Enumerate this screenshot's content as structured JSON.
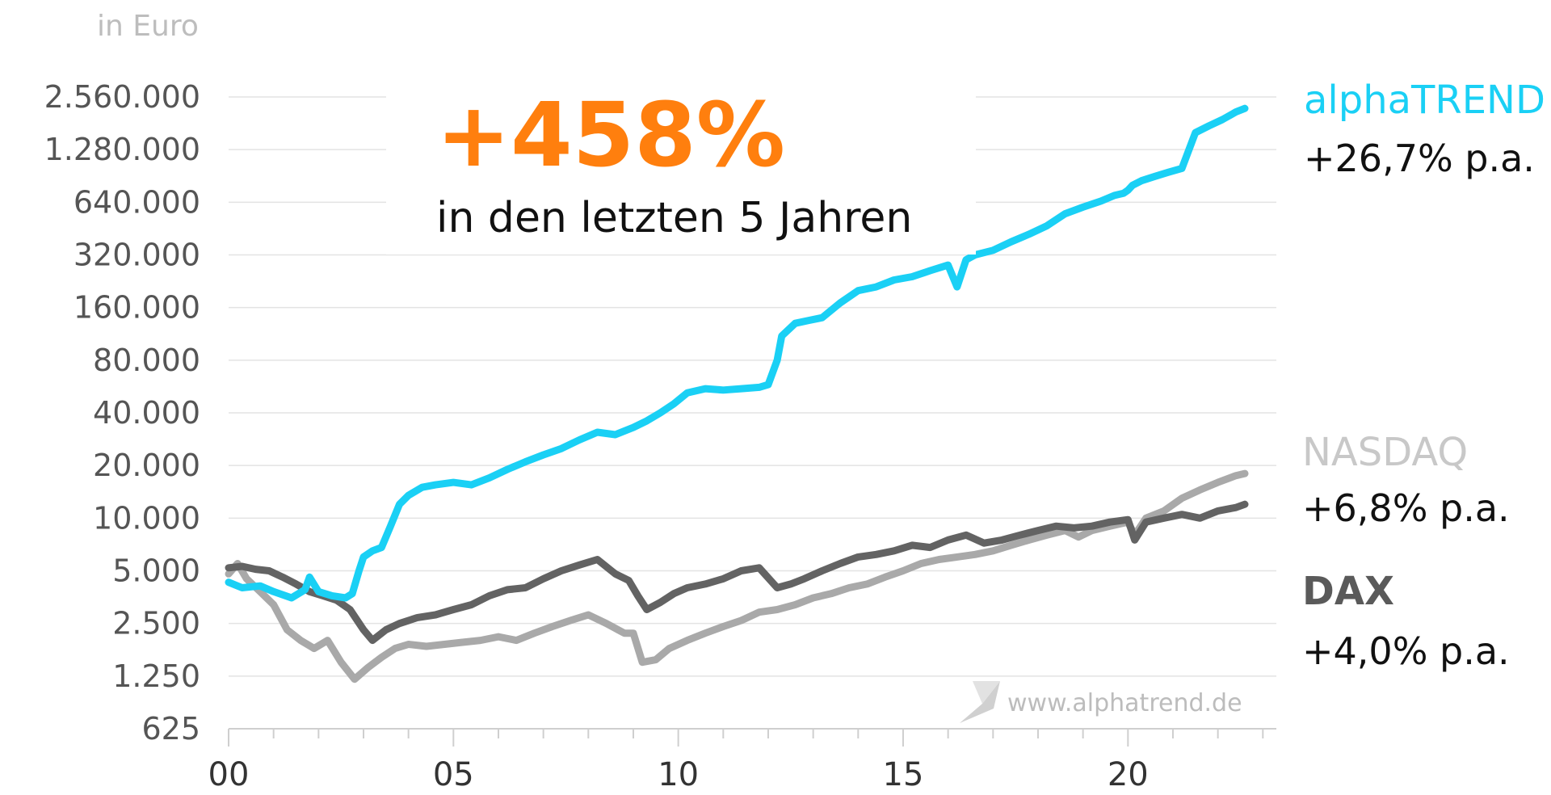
{
  "chart_data": {
    "type": "line",
    "ylabel": "in Euro",
    "y_scale": "log2",
    "ylim": [
      625,
      2560000
    ],
    "y_ticks": [
      625,
      1250,
      2500,
      5000,
      10000,
      20000,
      40000,
      80000,
      160000,
      320000,
      640000,
      1280000,
      2560000
    ],
    "y_tick_labels": [
      "625",
      "1.250",
      "2.500",
      "5.000",
      "10.000",
      "20.000",
      "40.000",
      "80.000",
      "160.000",
      "320.000",
      "640.000",
      "1.280.000",
      "2.560.000"
    ],
    "xlim": [
      2000,
      2023.3
    ],
    "x_ticks": [
      2000,
      2005,
      2010,
      2015,
      2020
    ],
    "x_tick_labels": [
      "00",
      "05",
      "10",
      "15",
      "20"
    ],
    "grid": true,
    "headline": "+458%",
    "subheadline": "in den letzten 5 Jahren",
    "watermark": "www.alphatrend.de",
    "series": [
      {
        "name": "alphaTREND",
        "return_label": "+26,7% p.a.",
        "color": "#1ad0f5",
        "x": [
          2000,
          2000.3,
          2000.7,
          2001.0,
          2001.4,
          2001.7,
          2001.8,
          2002.0,
          2002.3,
          2002.6,
          2002.75,
          2002.9,
          2003.0,
          2003.2,
          2003.4,
          2003.6,
          2003.8,
          2004.0,
          2004.3,
          2004.6,
          2005.0,
          2005.4,
          2005.8,
          2006.2,
          2006.6,
          2007.0,
          2007.4,
          2007.8,
          2008.2,
          2008.6,
          2009.0,
          2009.3,
          2009.6,
          2009.9,
          2010.2,
          2010.6,
          2011.0,
          2011.4,
          2011.8,
          2012.0,
          2012.2,
          2012.3,
          2012.6,
          2012.9,
          2013.2,
          2013.6,
          2014.0,
          2014.4,
          2014.8,
          2015.2,
          2015.6,
          2016.0,
          2016.2,
          2016.4,
          2016.6,
          2017.0,
          2017.4,
          2017.8,
          2018.2,
          2018.6,
          2019.0,
          2019.4,
          2019.7,
          2019.9,
          2020.0,
          2020.1,
          2020.3,
          2020.6,
          2020.9,
          2021.2,
          2021.5,
          2021.8,
          2022.1,
          2022.4,
          2022.6
        ],
        "y": [
          4300,
          4000,
          4100,
          3800,
          3500,
          3900,
          4600,
          3800,
          3600,
          3500,
          3700,
          5000,
          6000,
          6500,
          6800,
          9000,
          12000,
          13500,
          15000,
          15500,
          16000,
          15500,
          17000,
          19000,
          21000,
          23000,
          25000,
          28000,
          31000,
          30000,
          33000,
          36000,
          40000,
          45000,
          52000,
          55000,
          54000,
          55000,
          56000,
          58000,
          80000,
          110000,
          130000,
          135000,
          140000,
          170000,
          200000,
          210000,
          230000,
          240000,
          260000,
          280000,
          210000,
          300000,
          320000,
          340000,
          380000,
          420000,
          470000,
          550000,
          600000,
          650000,
          700000,
          720000,
          750000,
          800000,
          850000,
          900000,
          950000,
          1000000,
          1600000,
          1750000,
          1900000,
          2100000,
          2200000
        ]
      },
      {
        "name": "NASDAQ",
        "return_label": "+6,8% p.a.",
        "color": "#a9a9a9",
        "x": [
          2000,
          2000.2,
          2000.4,
          2000.7,
          2001.0,
          2001.3,
          2001.6,
          2001.9,
          2002.2,
          2002.5,
          2002.8,
          2003.1,
          2003.4,
          2003.7,
          2004.0,
          2004.4,
          2004.8,
          2005.2,
          2005.6,
          2006.0,
          2006.4,
          2006.8,
          2007.2,
          2007.6,
          2008.0,
          2008.4,
          2008.8,
          2009.0,
          2009.2,
          2009.5,
          2009.8,
          2010.2,
          2010.6,
          2011.0,
          2011.4,
          2011.8,
          2012.2,
          2012.6,
          2013.0,
          2013.4,
          2013.8,
          2014.2,
          2014.6,
          2015.0,
          2015.4,
          2015.8,
          2016.2,
          2016.6,
          2017.0,
          2017.4,
          2017.8,
          2018.2,
          2018.6,
          2018.9,
          2019.2,
          2019.6,
          2020.0,
          2020.15,
          2020.4,
          2020.8,
          2021.2,
          2021.6,
          2022.0,
          2022.4,
          2022.6
        ],
        "y": [
          4800,
          5500,
          4500,
          3800,
          3200,
          2300,
          2000,
          1800,
          2000,
          1500,
          1200,
          1400,
          1600,
          1800,
          1900,
          1850,
          1900,
          1950,
          2000,
          2100,
          2000,
          2200,
          2400,
          2600,
          2800,
          2500,
          2200,
          2200,
          1500,
          1550,
          1800,
          2000,
          2200,
          2400,
          2600,
          2900,
          3000,
          3200,
          3500,
          3700,
          4000,
          4200,
          4600,
          5000,
          5500,
          5800,
          6000,
          6200,
          6500,
          7000,
          7500,
          8000,
          8500,
          7800,
          8500,
          9000,
          9500,
          8000,
          10000,
          11000,
          13000,
          14500,
          16000,
          17500,
          18000
        ]
      },
      {
        "name": "DAX",
        "return_label": "+4,0% p.a.",
        "color": "#636363",
        "x": [
          2000,
          2000.3,
          2000.6,
          2000.9,
          2001.2,
          2001.5,
          2001.8,
          2002.1,
          2002.4,
          2002.7,
          2003.0,
          2003.2,
          2003.5,
          2003.8,
          2004.2,
          2004.6,
          2005.0,
          2005.4,
          2005.8,
          2006.2,
          2006.6,
          2007.0,
          2007.4,
          2007.8,
          2008.2,
          2008.6,
          2008.9,
          2009.1,
          2009.3,
          2009.6,
          2009.9,
          2010.2,
          2010.6,
          2011.0,
          2011.4,
          2011.8,
          2012.2,
          2012.5,
          2012.8,
          2013.2,
          2013.6,
          2014.0,
          2014.4,
          2014.8,
          2015.2,
          2015.6,
          2016.0,
          2016.4,
          2016.8,
          2017.2,
          2017.6,
          2018.0,
          2018.4,
          2018.8,
          2019.2,
          2019.6,
          2020.0,
          2020.15,
          2020.4,
          2020.8,
          2021.2,
          2021.6,
          2022.0,
          2022.4,
          2022.6
        ],
        "y": [
          5200,
          5300,
          5100,
          5000,
          4600,
          4200,
          3800,
          3600,
          3400,
          3000,
          2300,
          2000,
          2300,
          2500,
          2700,
          2800,
          3000,
          3200,
          3600,
          3900,
          4000,
          4500,
          5000,
          5400,
          5800,
          4800,
          4400,
          3600,
          3000,
          3300,
          3700,
          4000,
          4200,
          4500,
          5000,
          5200,
          4000,
          4200,
          4500,
          5000,
          5500,
          6000,
          6200,
          6500,
          7000,
          6800,
          7500,
          8000,
          7200,
          7500,
          8000,
          8500,
          9000,
          8800,
          9000,
          9500,
          9800,
          7500,
          9500,
          10000,
          10500,
          10000,
          11000,
          11500,
          12000
        ]
      }
    ]
  }
}
